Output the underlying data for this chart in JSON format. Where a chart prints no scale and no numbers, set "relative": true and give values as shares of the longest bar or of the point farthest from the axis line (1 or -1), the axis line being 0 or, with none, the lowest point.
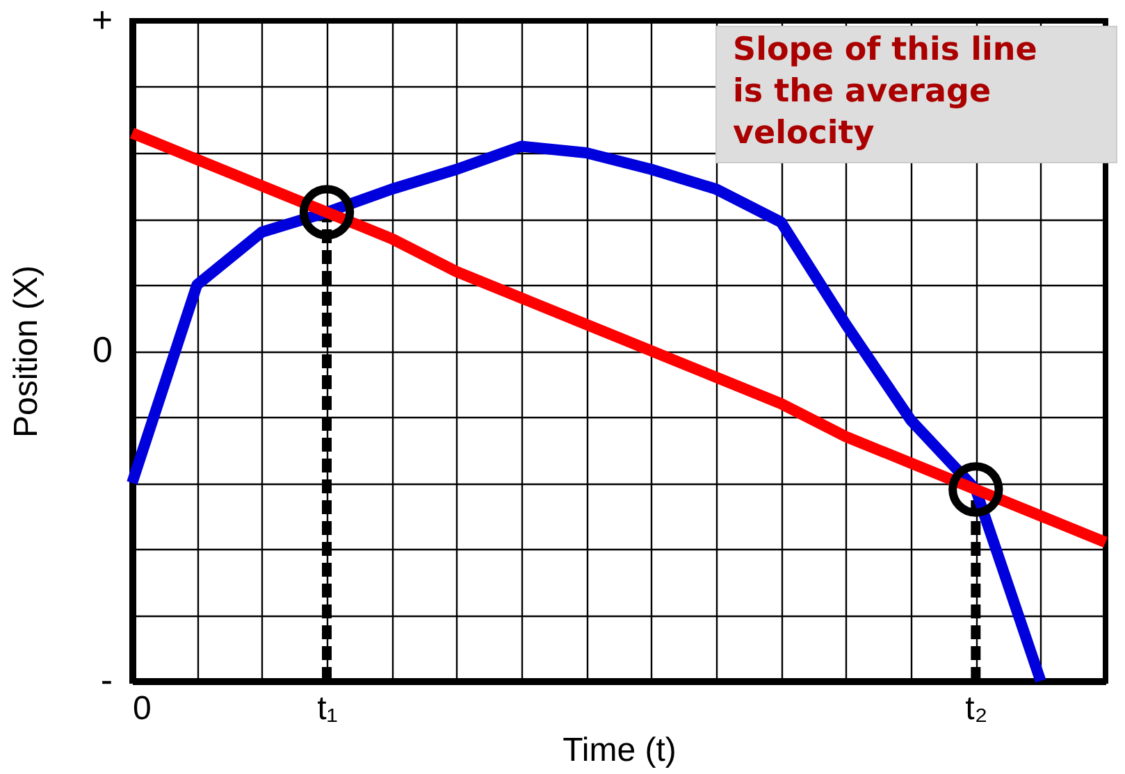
{
  "chart_data": {
    "type": "line",
    "xlabel": "Time (t)",
    "ylabel": "Position (X)",
    "relative": true,
    "categories": [
      "0",
      null,
      null,
      "t₁",
      null,
      null,
      null,
      null,
      null,
      null,
      null,
      null,
      null,
      "t₂",
      null,
      null
    ],
    "grid": true,
    "line_style": "solid",
    "series": [
      {
        "color": "#000000",
        "line_style": "dashed",
        "x": [
          "t₁",
          "t₁"
        ],
        "values": [
          -1,
          0.42
        ]
      },
      {
        "color": "#000000",
        "line_style": "dashed",
        "x": [
          "t₂",
          "t₂"
        ],
        "values": [
          -1,
          -0.42
        ]
      },
      {
        "color": "#0000dd",
        "values": [
          -0.4,
          0.2,
          0.36,
          0.42,
          0.49,
          0.55,
          0.62,
          0.6,
          0.55,
          0.49,
          0.39,
          0.08,
          -0.21,
          -0.42,
          -1,
          null
        ]
      },
      {
        "color": "#ff0000",
        "values": [
          0.66,
          0.58,
          0.5,
          0.42,
          0.34,
          0.24,
          0.16,
          0.08,
          0.0,
          -0.08,
          -0.16,
          -0.26,
          -0.34,
          -0.42,
          -0.5,
          -0.58
        ]
      },
      {
        "type": "scatter",
        "color": "#000000",
        "marker": "circle",
        "x": [
          "t₁",
          "t₂"
        ],
        "values": [
          0.42,
          -0.42
        ]
      }
    ],
    "annotations": [
      "+",
      "0",
      "-",
      "Slope of this line\nis the average\nvelocity"
    ]
  }
}
